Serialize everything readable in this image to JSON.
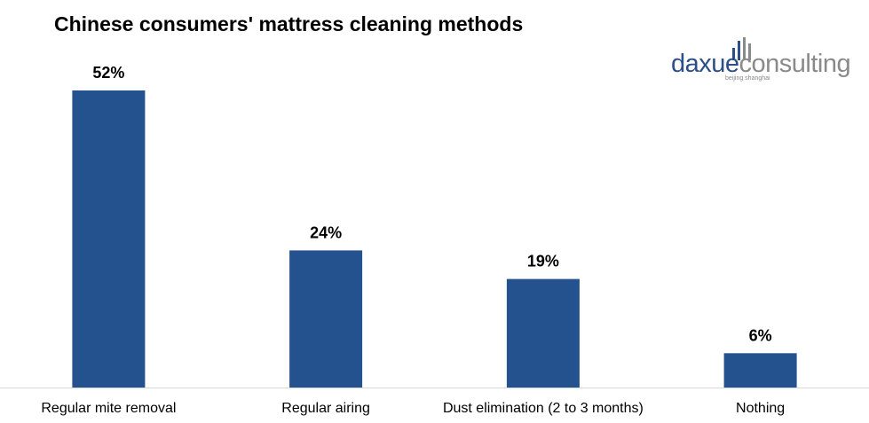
{
  "chart_data": {
    "type": "bar",
    "title": "Chinese consumers' mattress cleaning methods",
    "categories": [
      "Regular mite removal",
      "Regular airing",
      "Dust elimination (2 to 3 months)",
      "Nothing"
    ],
    "values": [
      52,
      24,
      19,
      6
    ],
    "value_labels": [
      "52%",
      "24%",
      "19%",
      "6%"
    ],
    "unit": "%",
    "ylim": [
      0,
      52
    ],
    "grid": false,
    "legend": "none",
    "bar_color": "#24528e",
    "axis_color": "#d9d9d9"
  },
  "logo": {
    "part_a": "daxue",
    "part_b": "consulting",
    "tagline": "beijing shanghai",
    "color_a": "#2b4f86",
    "color_b": "#8a8a8a"
  }
}
